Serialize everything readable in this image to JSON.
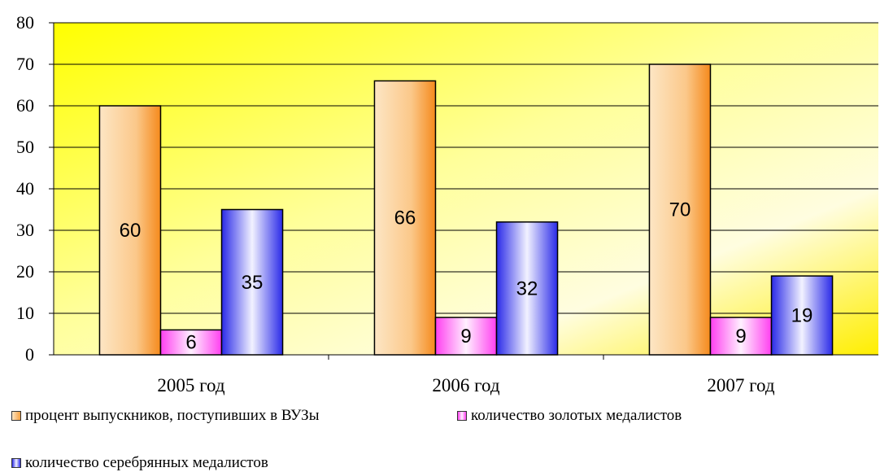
{
  "chart_data": {
    "type": "bar",
    "categories": [
      "2005 год",
      "2006 год",
      "2007 год"
    ],
    "series": [
      {
        "name": "процент выпускников, поступивших в ВУЗы",
        "values": [
          60,
          66,
          70
        ],
        "color": "#f7a040"
      },
      {
        "name": "количество золотых медалистов",
        "values": [
          6,
          9,
          9
        ],
        "color": "#ff3ff0"
      },
      {
        "name": "количество серебрянных медалистов",
        "values": [
          35,
          32,
          19
        ],
        "color": "#3030ff"
      }
    ],
    "ylim": [
      0,
      80
    ],
    "yticks": [
      0,
      10,
      20,
      30,
      40,
      50,
      60,
      70,
      80
    ],
    "data_labels": true,
    "grid": true,
    "legend_position": "bottom",
    "background": "yellow gradient"
  }
}
